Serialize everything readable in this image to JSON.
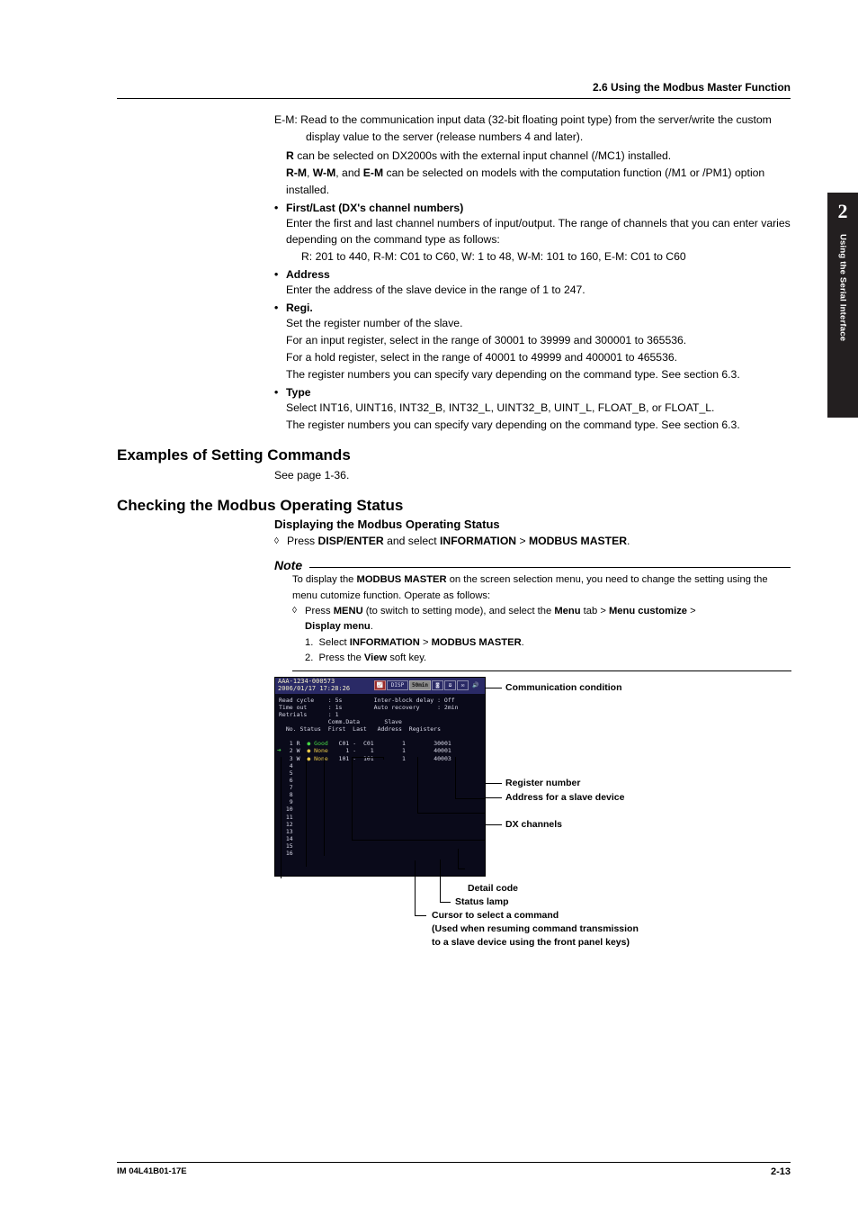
{
  "header": {
    "section_title": "2.6  Using the Modbus Master Function"
  },
  "sidebar_tab": {
    "number": "2",
    "text": "Using the Serial Interface"
  },
  "footer": {
    "left": "IM 04L41B01-17E",
    "right": "2-13"
  },
  "em_line_prefix": "E-M:",
  "em_line_text": " Read to the communication input data (32-bit floating point type) from the server/write the custom display value to the server (release numbers 4 and later).",
  "r_note_pre": "R",
  "r_note_post": " can be selected on DX2000s with the external input channel (/MC1) installed.",
  "rm": "R-M",
  "wm": "W-M",
  "emm": "E-M",
  "rm_wm_em_post": " can be selected on models with the computation function (/M1 or /PM1) option installed.",
  "comma_and": ", and ",
  "comma": ", ",
  "bullets": {
    "first_last": {
      "title": "First/Last (DX's channel numbers)",
      "p1": "Enter the first and last channel numbers of input/output. The range of channels that you can enter varies depending on the command type as follows:",
      "p2": "R: 201 to 440, R-M: C01 to C60, W: 1 to 48, W-M: 101 to 160, E-M: C01 to C60"
    },
    "address": {
      "title": "Address",
      "p1": "Enter the address of the slave device in the range of 1 to 247."
    },
    "regi": {
      "title": "Regi.",
      "p1": "Set the register number of the slave.",
      "p2": "For an input register, select in the range of 30001 to 39999 and 300001 to 365536.",
      "p3": "For a hold register, select in the range of 40001 to 49999 and 400001 to 465536.",
      "p4": "The register numbers you can specify vary depending on the command type. See section 6.3."
    },
    "type": {
      "title": "Type",
      "p1": "Select INT16, UINT16, INT32_B, INT32_L, UINT32_B, UINT_L, FLOAT_B, or FLOAT_L.",
      "p2": "The register numbers you can specify vary depending on the command type. See section 6.3."
    }
  },
  "h_examples": "Examples of Setting Commands",
  "examples_p": "See page 1-36.",
  "h_checking": "Checking the Modbus Operating Status",
  "h_display": "Displaying the Modbus Operating Status",
  "press": "Press ",
  "disp_enter": "DISP/ENTER",
  "and_select": " and select ",
  "info": "INFORMATION",
  "gt": " > ",
  "mm": "MODBUS MASTER",
  "period": ".",
  "note_label": "Note",
  "note": {
    "p1a": "To display the ",
    "p1b": " on the screen selection menu, you need to change the setting using the menu cutomize function. Operate as follows:",
    "d_pre": "Press ",
    "menu": "MENU",
    "d_mid": " (to switch to setting mode), and select the ",
    "menu_tab": "Menu",
    "tab_word": " tab > ",
    "menu_cust": "Menu customize",
    "disp_menu": "Display menu",
    "n1_pre": "Select ",
    "n2_pre": "Press the ",
    "view": "View",
    "n2_post": " soft key."
  },
  "screen": {
    "title_l1": "AAA-1234-000573",
    "title_l2": "2006/01/17 17:28:26",
    "disp": "DISP",
    "time": "50min",
    "body": "Read cycle    : 5s         Inter-block delay : Off\nTime out      : 1s         Auto recovery     : 2min\nRetrials      : 1\n              Comm.Data       Slave\n  No. Status  First  Last   Address  Registers\n\n   1 R  Good   C01 -  C01        1        30001\n   2 W  None     1 -    1        1        40001\n   3 W  None   101 -  101        1        40003\n   4\n   5\n   6\n   7\n   8\n   9\n  10\n  11\n  12\n  13\n  14\n  15\n  16"
  },
  "labels": {
    "comm": "Communication condition",
    "reg": "Register number",
    "addr": "Address for a slave device",
    "dx": "DX channels",
    "detail": "Detail code",
    "status": "Status lamp",
    "cursor1": "Cursor to select a command",
    "cursor2": "(Used when resuming command transmission",
    "cursor3": "to a slave device using the front panel keys)"
  }
}
